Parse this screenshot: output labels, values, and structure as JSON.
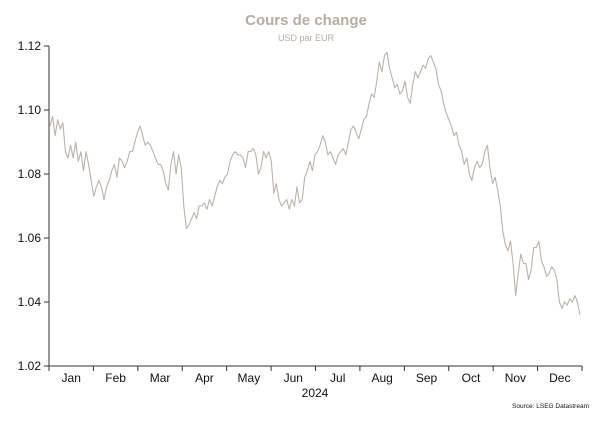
{
  "chart_data": {
    "type": "line",
    "title": "Cours de change",
    "subtitle": "USD par EUR",
    "year_label": "2024",
    "source": "Source: LSEG Datastream",
    "ylim": [
      1.02,
      1.12
    ],
    "yticks": [
      "1.02",
      "1.04",
      "1.06",
      "1.08",
      "1.10",
      "1.12"
    ],
    "months": [
      "Jan",
      "Feb",
      "Mar",
      "Apr",
      "May",
      "Jun",
      "Jul",
      "Aug",
      "Sep",
      "Oct",
      "Nov",
      "Dec"
    ],
    "grid": false,
    "colors": {
      "line": "#bcb2a6",
      "title": "#b8ad9f",
      "axis": "#333333"
    },
    "series": [
      {
        "values": [
          1.095,
          1.098,
          1.092,
          1.097,
          1.094,
          1.096,
          1.087,
          1.085,
          1.089,
          1.085,
          1.09,
          1.084,
          1.087,
          1.081,
          1.087,
          1.083,
          1.078,
          1.073,
          1.076,
          1.078,
          1.076,
          1.072,
          1.076,
          1.078,
          1.081,
          1.083,
          1.079,
          1.085,
          1.084,
          1.082,
          1.084,
          1.087,
          1.087,
          1.09,
          1.093,
          1.095,
          1.092,
          1.089,
          1.09,
          1.089,
          1.087,
          1.085,
          1.083,
          1.083,
          1.081,
          1.077,
          1.075,
          1.083,
          1.087,
          1.08,
          1.086,
          1.082,
          1.07,
          1.063,
          1.064,
          1.066,
          1.068,
          1.066,
          1.07,
          1.07,
          1.071,
          1.069,
          1.072,
          1.07,
          1.073,
          1.076,
          1.078,
          1.077,
          1.079,
          1.08,
          1.084,
          1.086,
          1.087,
          1.086,
          1.086,
          1.085,
          1.082,
          1.087,
          1.087,
          1.088,
          1.086,
          1.08,
          1.082,
          1.087,
          1.085,
          1.087,
          1.084,
          1.074,
          1.077,
          1.072,
          1.07,
          1.071,
          1.072,
          1.069,
          1.072,
          1.07,
          1.076,
          1.071,
          1.072,
          1.079,
          1.081,
          1.084,
          1.081,
          1.086,
          1.087,
          1.089,
          1.092,
          1.09,
          1.086,
          1.087,
          1.085,
          1.083,
          1.086,
          1.087,
          1.088,
          1.086,
          1.09,
          1.094,
          1.095,
          1.093,
          1.091,
          1.094,
          1.097,
          1.098,
          1.102,
          1.105,
          1.104,
          1.109,
          1.115,
          1.112,
          1.117,
          1.118,
          1.113,
          1.11,
          1.107,
          1.108,
          1.105,
          1.106,
          1.109,
          1.104,
          1.102,
          1.108,
          1.112,
          1.11,
          1.112,
          1.114,
          1.113,
          1.116,
          1.117,
          1.115,
          1.113,
          1.108,
          1.106,
          1.102,
          1.099,
          1.097,
          1.095,
          1.092,
          1.093,
          1.089,
          1.087,
          1.083,
          1.085,
          1.08,
          1.078,
          1.082,
          1.084,
          1.082,
          1.083,
          1.087,
          1.089,
          1.082,
          1.077,
          1.079,
          1.075,
          1.07,
          1.062,
          1.058,
          1.056,
          1.059,
          1.052,
          1.042,
          1.049,
          1.055,
          1.052,
          1.052,
          1.047,
          1.05,
          1.057,
          1.057,
          1.059,
          1.053,
          1.051,
          1.048,
          1.049,
          1.051,
          1.05,
          1.047,
          1.04,
          1.038,
          1.04,
          1.039,
          1.041,
          1.04,
          1.042,
          1.04,
          1.036
        ]
      }
    ]
  }
}
